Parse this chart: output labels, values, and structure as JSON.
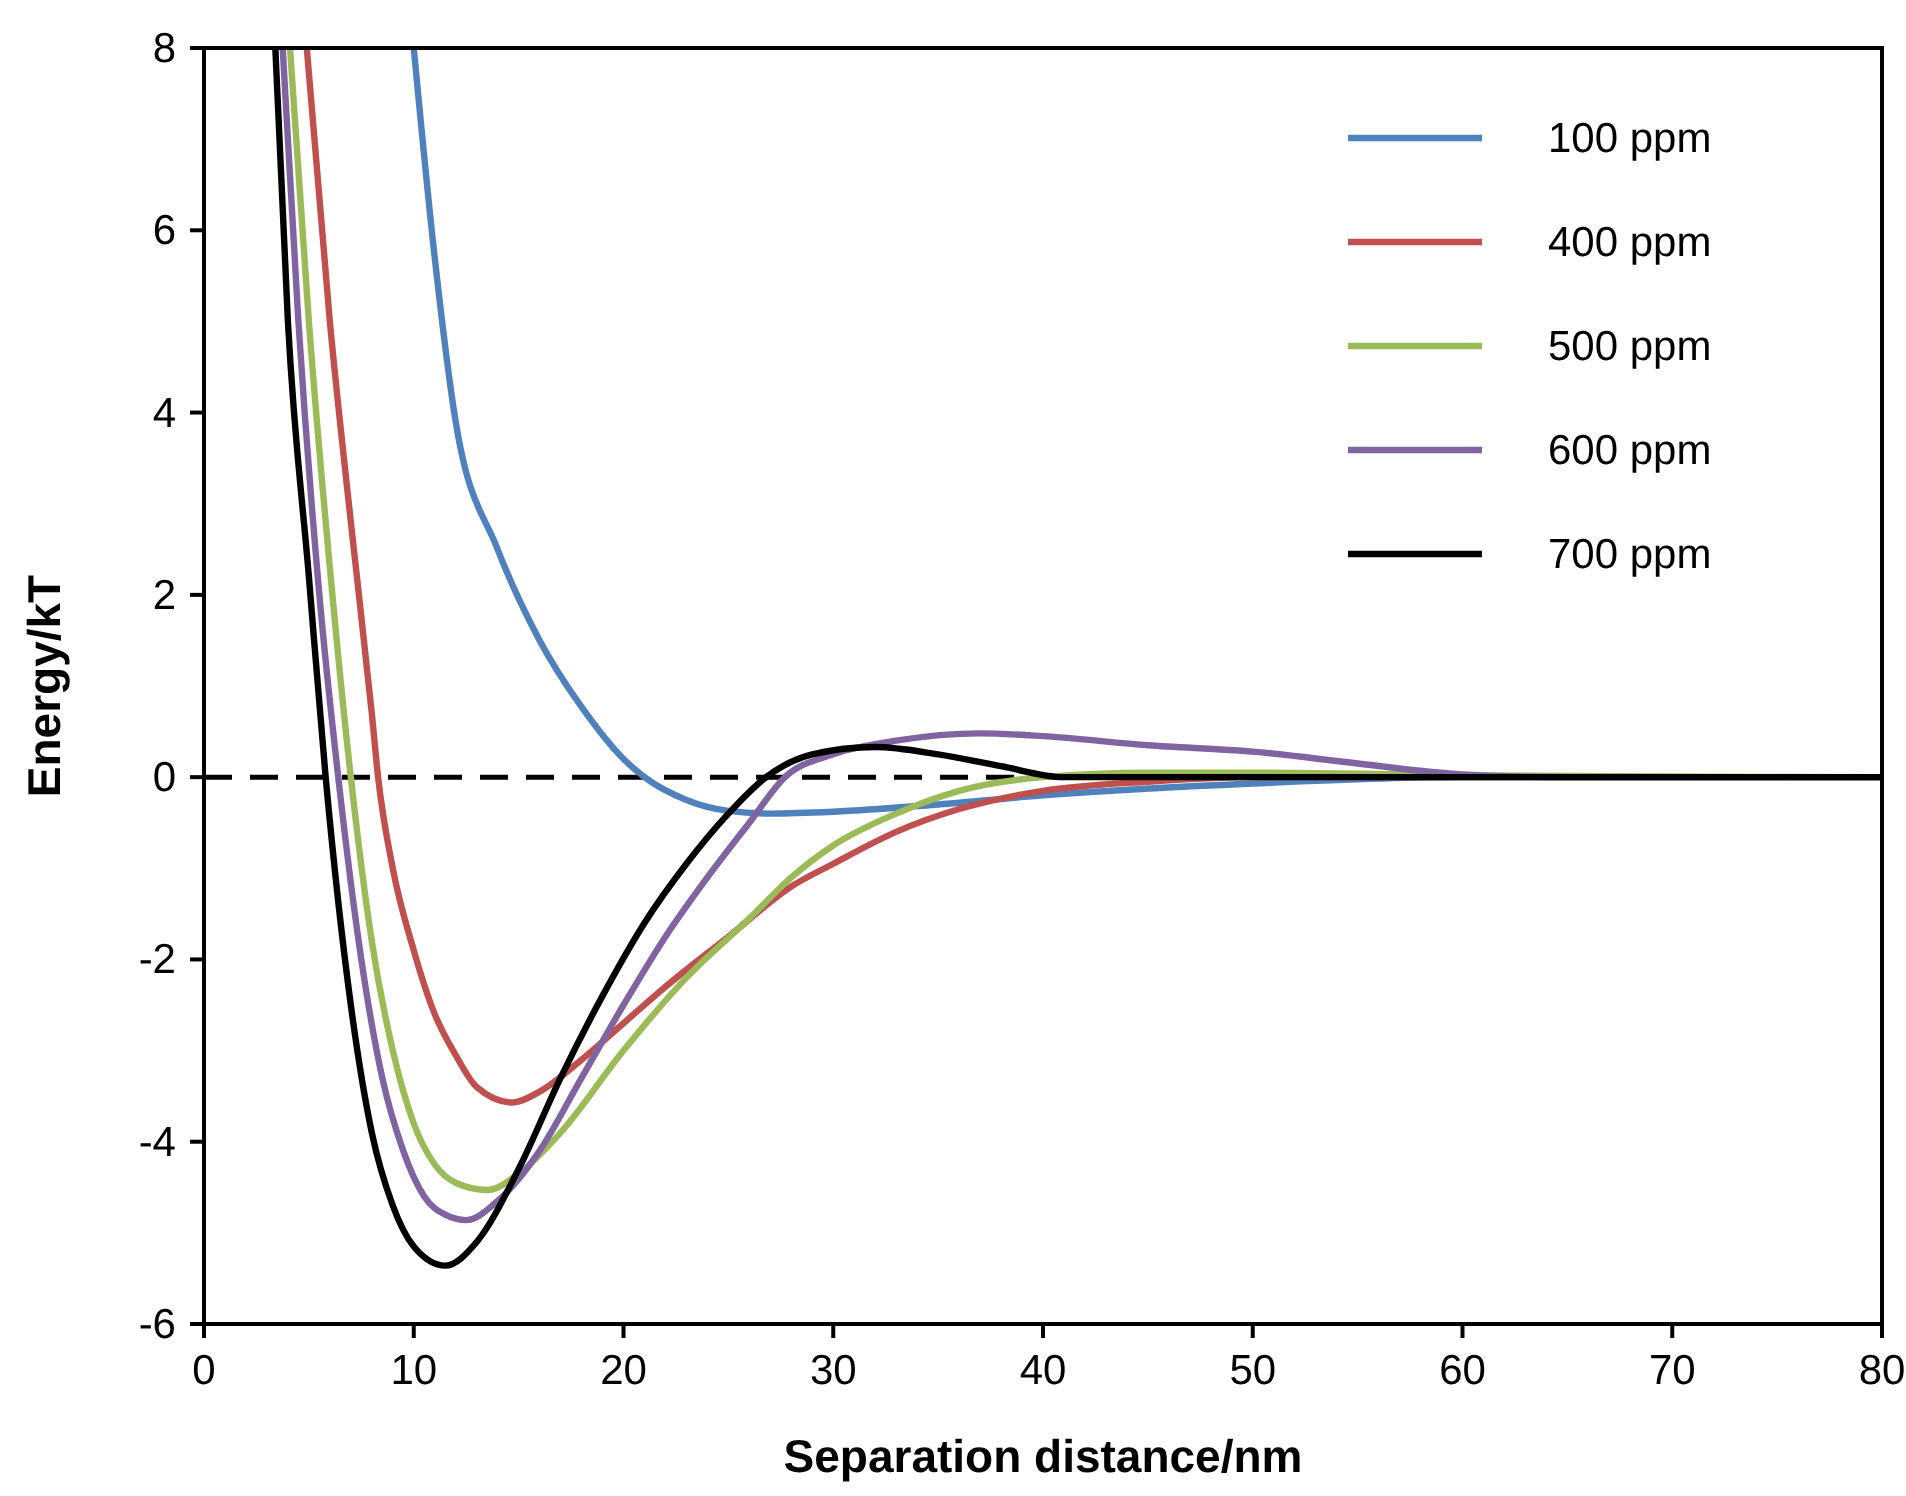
{
  "chart_data": {
    "type": "line",
    "xlabel": "Separation distance/nm",
    "ylabel": "Energy/kT",
    "xlim": [
      0,
      80
    ],
    "xticks": [
      0,
      10,
      20,
      30,
      40,
      50,
      60,
      70,
      80
    ],
    "ylim": [
      -6,
      8
    ],
    "yticks": [
      -6,
      -4,
      -2,
      0,
      2,
      4,
      6,
      8
    ],
    "grid": false,
    "legend": "top right",
    "marker": "none",
    "line_style": "solid",
    "ref_lines": [
      {
        "axis": "y",
        "value": 0,
        "color": "#000000",
        "line_style": "dashed"
      }
    ],
    "series": [
      {
        "name": "100 ppm",
        "color": "#4f81bd",
        "x": [
          10,
          11,
          12,
          14,
          16,
          18,
          20,
          21,
          23,
          25,
          27,
          30,
          35,
          40,
          50,
          60,
          80
        ],
        "values": [
          8,
          5.7,
          3.9,
          2.5,
          1.5,
          0.77,
          0.2,
          0,
          -0.25,
          -0.37,
          -0.4,
          -0.38,
          -0.3,
          -0.2,
          -0.07,
          0,
          0
        ]
      },
      {
        "name": "400 ppm",
        "color": "#c0504d",
        "x": [
          4.9,
          6,
          7,
          8,
          8.3,
          9,
          10,
          11,
          12,
          13,
          14.7,
          16,
          18,
          20,
          22,
          25,
          28,
          30,
          33,
          36,
          40,
          45,
          50,
          80
        ],
        "values": [
          8,
          5,
          2.8,
          0.7,
          0,
          -1,
          -1.9,
          -2.6,
          -3.05,
          -3.4,
          -3.57,
          -3.45,
          -3.1,
          -2.7,
          -2.3,
          -1.75,
          -1.2,
          -0.95,
          -0.6,
          -0.35,
          -0.15,
          -0.05,
          0,
          0
        ]
      },
      {
        "name": "500 ppm",
        "color": "#9bbb59",
        "x": [
          4.1,
          5,
          6,
          7,
          8,
          9,
          10,
          11,
          12,
          13.5,
          15,
          17,
          20,
          23,
          26,
          28,
          30,
          33,
          36,
          40,
          45,
          50,
          60,
          80
        ],
        "values": [
          8,
          5,
          2.3,
          0,
          -1.8,
          -3,
          -3.8,
          -4.25,
          -4.45,
          -4.53,
          -4.35,
          -3.9,
          -3,
          -2.2,
          -1.55,
          -1.1,
          -0.75,
          -0.4,
          -0.15,
          0,
          0.05,
          0.05,
          0.02,
          0
        ]
      },
      {
        "name": "600 ppm",
        "color": "#8064a2",
        "x": [
          3.75,
          4.5,
          5.5,
          6.4,
          7.5,
          8.5,
          9.5,
          10.5,
          11.5,
          12.5,
          14,
          16,
          18,
          20,
          22,
          24,
          26,
          27.7,
          30,
          33,
          37,
          40,
          45,
          50,
          55,
          60,
          65,
          80
        ],
        "values": [
          8,
          5,
          2,
          0,
          -2,
          -3.3,
          -4.1,
          -4.6,
          -4.8,
          -4.86,
          -4.65,
          -4.1,
          -3.3,
          -2.5,
          -1.75,
          -1.1,
          -0.5,
          0,
          0.25,
          0.4,
          0.48,
          0.45,
          0.35,
          0.28,
          0.15,
          0.03,
          0,
          0
        ]
      },
      {
        "name": "700 ppm",
        "color": "#000000",
        "x": [
          3.4,
          4,
          5,
          5.8,
          7,
          8,
          9,
          10,
          11.5,
          13,
          15,
          17,
          19,
          21,
          23,
          25,
          26.8,
          29,
          32,
          35,
          38,
          41,
          80
        ],
        "values": [
          8,
          5,
          2.2,
          0,
          -2.5,
          -3.9,
          -4.7,
          -5.15,
          -5.36,
          -5.1,
          -4.3,
          -3.3,
          -2.4,
          -1.6,
          -0.95,
          -0.4,
          0,
          0.25,
          0.33,
          0.25,
          0.12,
          0,
          0
        ]
      }
    ]
  }
}
